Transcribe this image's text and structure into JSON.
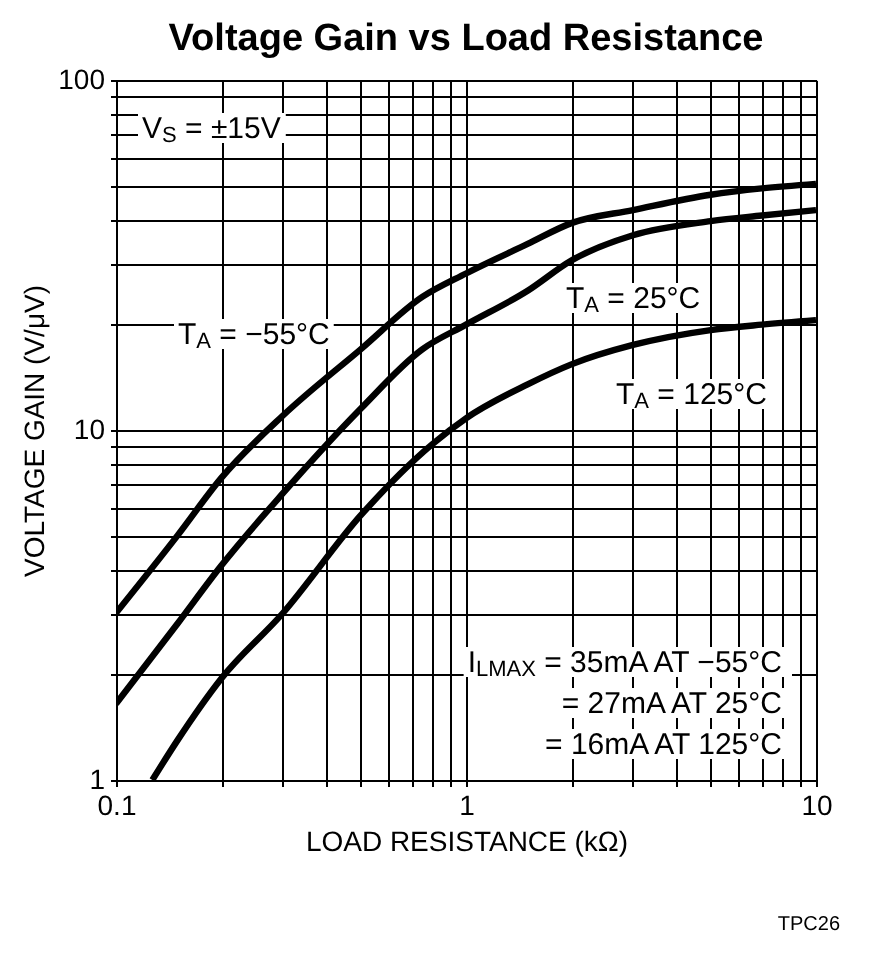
{
  "chart_data": {
    "type": "line",
    "title": "Voltage Gain vs Load Resistance",
    "xlabel": "LOAD RESISTANCE (kΩ)",
    "ylabel": "VOLTAGE GAIN (V/μV)",
    "series": [
      {
        "color": "#000000",
        "x": [
          0.1,
          0.15,
          0.2,
          0.3,
          0.5,
          0.75,
          1,
          1.5,
          2,
          3,
          5,
          7,
          10
        ],
        "values": [
          3.0,
          5.0,
          7.3,
          11,
          17,
          24,
          28,
          34,
          39,
          42.5,
          47,
          49,
          50.5
        ]
      },
      {
        "color": "#000000",
        "x": [
          0.1,
          0.15,
          0.2,
          0.3,
          0.5,
          0.75,
          1,
          1.5,
          2,
          3,
          5,
          7,
          10
        ],
        "values": [
          1.65,
          2.8,
          4.1,
          6.6,
          11.5,
          17,
          20,
          25,
          30.5,
          36,
          39.5,
          41,
          42.5
        ]
      },
      {
        "color": "#000000",
        "x": [
          0.127,
          0.15,
          0.2,
          0.3,
          0.5,
          0.8,
          1,
          1.5,
          2,
          3,
          5,
          7,
          10
        ],
        "values": [
          1,
          1.3,
          1.95,
          3.0,
          5.7,
          9.1,
          10.8,
          13.5,
          15.4,
          17.5,
          19.3,
          20,
          20.6
        ]
      }
    ],
    "xlim": [
      0.1,
      10
    ],
    "ylim": [
      1,
      100
    ],
    "log": "xy",
    "grid": true,
    "xticks": [
      0.1,
      {
        "value": 0.2,
        "label": null
      },
      {
        "value": 0.3,
        "label": null
      },
      {
        "value": 0.4,
        "label": null
      },
      {
        "value": 0.5,
        "label": null
      },
      {
        "value": 0.6,
        "label": null
      },
      {
        "value": 0.7,
        "label": null
      },
      {
        "value": 0.8,
        "label": null
      },
      {
        "value": 0.9,
        "label": null
      },
      1,
      {
        "value": 2,
        "label": null
      },
      {
        "value": 3,
        "label": null
      },
      {
        "value": 4,
        "label": null
      },
      {
        "value": 5,
        "label": null
      },
      {
        "value": 6,
        "label": null
      },
      {
        "value": 7,
        "label": null
      },
      {
        "value": 8,
        "label": null
      },
      {
        "value": 9,
        "label": null
      },
      10
    ],
    "yticks": [
      1,
      {
        "value": 2,
        "label": null
      },
      {
        "value": 3,
        "label": null
      },
      {
        "value": 4,
        "label": null
      },
      {
        "value": 5,
        "label": null
      },
      {
        "value": 6,
        "label": null
      },
      {
        "value": 7,
        "label": null
      },
      {
        "value": 8,
        "label": null
      },
      {
        "value": 9,
        "label": null
      },
      10,
      {
        "value": 20,
        "label": null
      },
      {
        "value": 30,
        "label": null
      },
      {
        "value": 40,
        "label": null
      },
      {
        "value": 50,
        "label": null
      },
      {
        "value": 60,
        "label": null
      },
      {
        "value": 70,
        "label": null
      },
      {
        "value": 80,
        "label": null
      },
      {
        "value": 90,
        "label": null
      },
      100
    ],
    "annotations": [
      "V$_{S}$ = ±15V",
      "T$_{A}$ = −55°C",
      "T$_{A}$ = 25°C",
      "T$_{A}$ = 125°C",
      "I$_{LMAX}$ = 35mA AT −55°C\n= 27mA AT 25°C\n= 16mA AT 125°C",
      "TPC26"
    ]
  }
}
